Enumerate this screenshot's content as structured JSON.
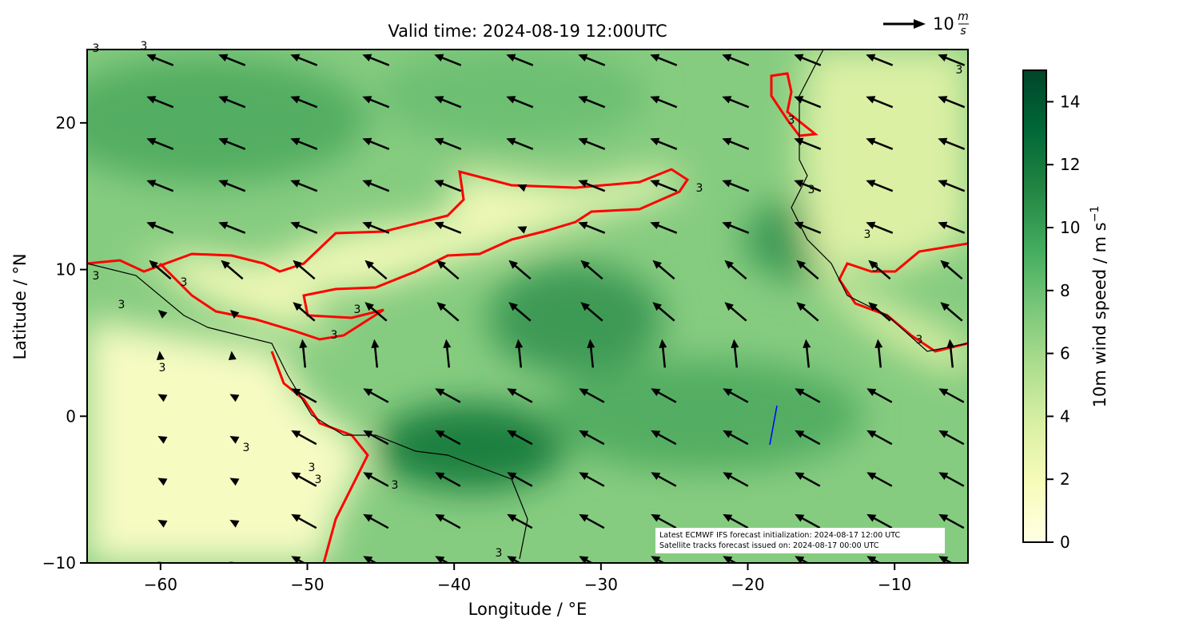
{
  "map": {
    "title": "Valid time: 2024-08-19 12:00UTC",
    "xlabel": "Longitude / °E",
    "ylabel": "Latitude / °N",
    "xlim": [
      -65,
      -5
    ],
    "ylim": [
      -10,
      25
    ],
    "xticks": [
      {
        "value": -60,
        "label": "−60"
      },
      {
        "value": -50,
        "label": "−50"
      },
      {
        "value": -40,
        "label": "−40"
      },
      {
        "value": -30,
        "label": "−30"
      },
      {
        "value": -20,
        "label": "−20"
      },
      {
        "value": -10,
        "label": "−10"
      }
    ],
    "yticks": [
      {
        "value": -10,
        "label": "−10"
      },
      0,
      10,
      20
    ],
    "contour_label": "3",
    "colorbar": {
      "label": "10m wind speed / m s",
      "label_sup": "−1",
      "lim": [
        0,
        15
      ],
      "ticks": [
        0,
        2,
        4,
        6,
        8,
        10,
        12,
        14
      ],
      "colors": [
        "#ffffe5",
        "#f7fcb9",
        "#d9f0a3",
        "#addd8e",
        "#78c679",
        "#41ab5d",
        "#238443",
        "#006837",
        "#004529"
      ]
    },
    "quiver_key": {
      "value": 10,
      "unit_num": "m",
      "unit_den": "s"
    },
    "annotation": [
      "Latest ECMWF IFS forecast initialization: 2024-08-17 12:00 UTC",
      "Satellite tracks forecast issued on: 2024-08-17 00:00 UTC"
    ]
  }
}
